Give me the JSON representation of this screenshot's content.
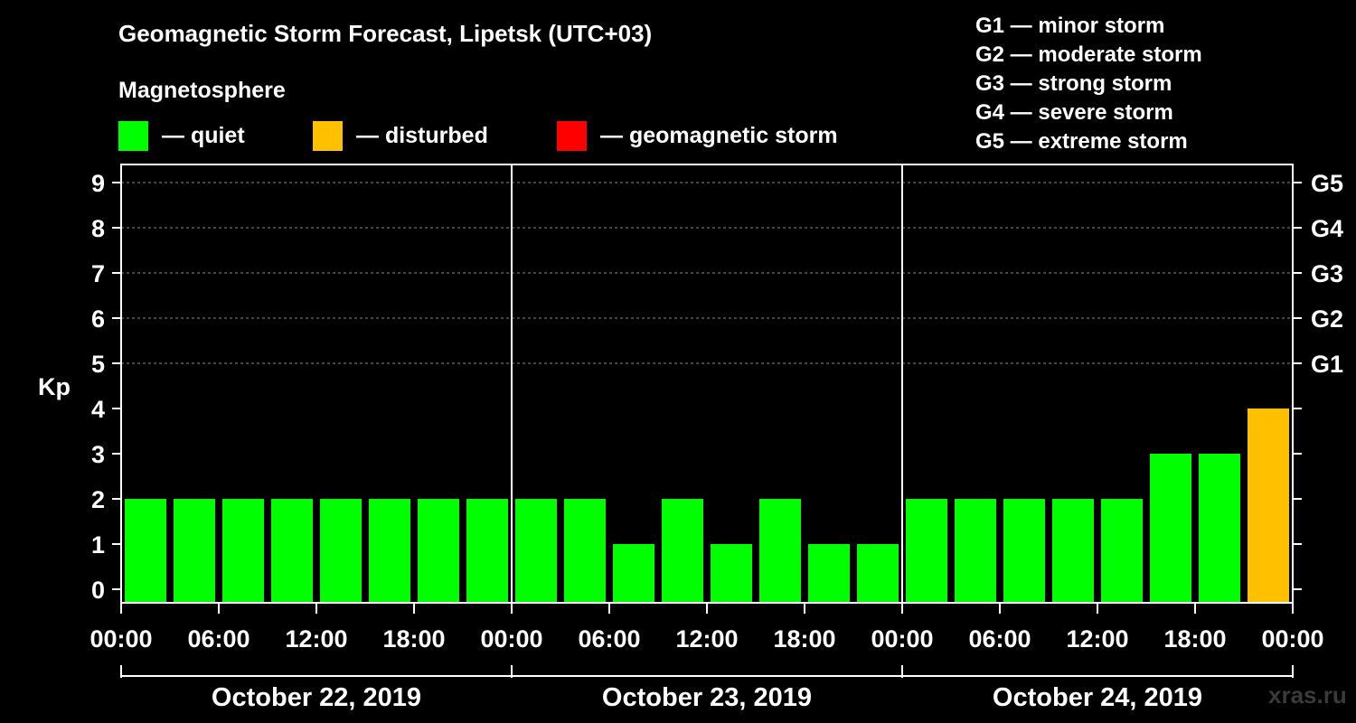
{
  "title": "Geomagnetic Storm Forecast, Lipetsk (UTC+03)",
  "subtitle": "Magnetosphere",
  "legend": [
    {
      "color": "#00ff00",
      "label": "— quiet"
    },
    {
      "color": "#ffc000",
      "label": "— disturbed"
    },
    {
      "color": "#ff0000",
      "label": "— geomagnetic storm"
    }
  ],
  "g_scale": [
    "G1 — minor storm",
    "G2 — moderate storm",
    "G3 — strong storm",
    "G4 — severe storm",
    "G5 — extreme storm"
  ],
  "watermark": "xras.ru",
  "chart_data": {
    "type": "bar",
    "ylabel": "Kp",
    "ylim": [
      0,
      9
    ],
    "y_ticks": [
      "0",
      "1",
      "2",
      "3",
      "4",
      "5",
      "6",
      "7",
      "8",
      "9"
    ],
    "right_ticks": [
      {
        "kp": 5,
        "label": "G1"
      },
      {
        "kp": 6,
        "label": "G2"
      },
      {
        "kp": 7,
        "label": "G3"
      },
      {
        "kp": 8,
        "label": "G4"
      },
      {
        "kp": 9,
        "label": "G5"
      }
    ],
    "x_tick_labels": [
      "00:00",
      "06:00",
      "12:00",
      "18:00",
      "00:00",
      "06:00",
      "12:00",
      "18:00",
      "00:00",
      "06:00",
      "12:00",
      "18:00",
      "00:00"
    ],
    "days": [
      "October 22, 2019",
      "October 23, 2019",
      "October 24, 2019"
    ],
    "grid": "dashed horizontal at Kp 5-9",
    "values": [
      2,
      2,
      2,
      2,
      2,
      2,
      2,
      2,
      2,
      2,
      1,
      2,
      1,
      2,
      1,
      1,
      2,
      2,
      2,
      2,
      2,
      3,
      3,
      4
    ],
    "colors": {
      "quiet": "#00ff00",
      "disturbed": "#ffc000",
      "storm": "#ff0000"
    }
  }
}
